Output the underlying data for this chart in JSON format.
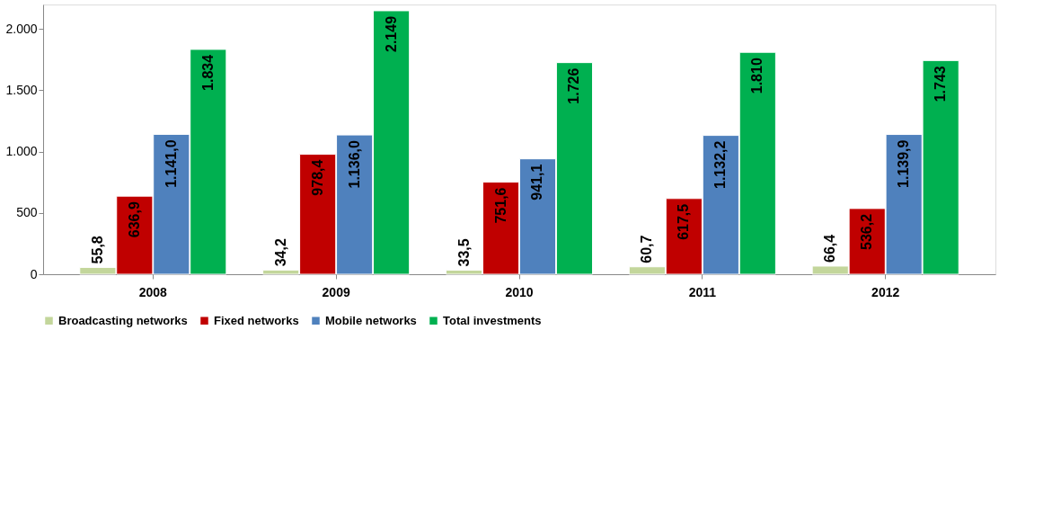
{
  "chart_data": {
    "type": "bar",
    "categories": [
      "2008",
      "2009",
      "2010",
      "2011",
      "2012"
    ],
    "series": [
      {
        "name": "Broadcasting networks",
        "color": "#c3d69b",
        "values": [
          55.8,
          34.2,
          33.5,
          60.7,
          66.4
        ],
        "value_labels": [
          "55,8",
          "34,2",
          "33,5",
          "60,7",
          "66,4"
        ]
      },
      {
        "name": "Fixed networks",
        "color": "#c00000",
        "values": [
          636.9,
          978.4,
          751.6,
          617.5,
          536.2
        ],
        "value_labels": [
          "636,9",
          "978,4",
          "751,6",
          "617,5",
          "536,2"
        ]
      },
      {
        "name": "Mobile networks",
        "color": "#4f81bd",
        "values": [
          1141.0,
          1136.0,
          941.1,
          1132.2,
          1139.9
        ],
        "value_labels": [
          "1.141,0",
          "1.136,0",
          "941,1",
          "1.132,2",
          "1.139,9"
        ]
      },
      {
        "name": "Total investments",
        "color": "#00b050",
        "values": [
          1834,
          2149,
          1726,
          1810,
          1743
        ],
        "value_labels": [
          "1.834",
          "2.149",
          "1.726",
          "1.810",
          "1.743"
        ]
      }
    ],
    "ylim": [
      0,
      2200
    ],
    "yticks": [
      0,
      500,
      {
        "value": 1000,
        "label": "1.000"
      },
      {
        "value": 1500,
        "label": "1.500"
      },
      {
        "value": 2000,
        "label": "2.000"
      }
    ],
    "grid": false,
    "legend": "bottom"
  }
}
